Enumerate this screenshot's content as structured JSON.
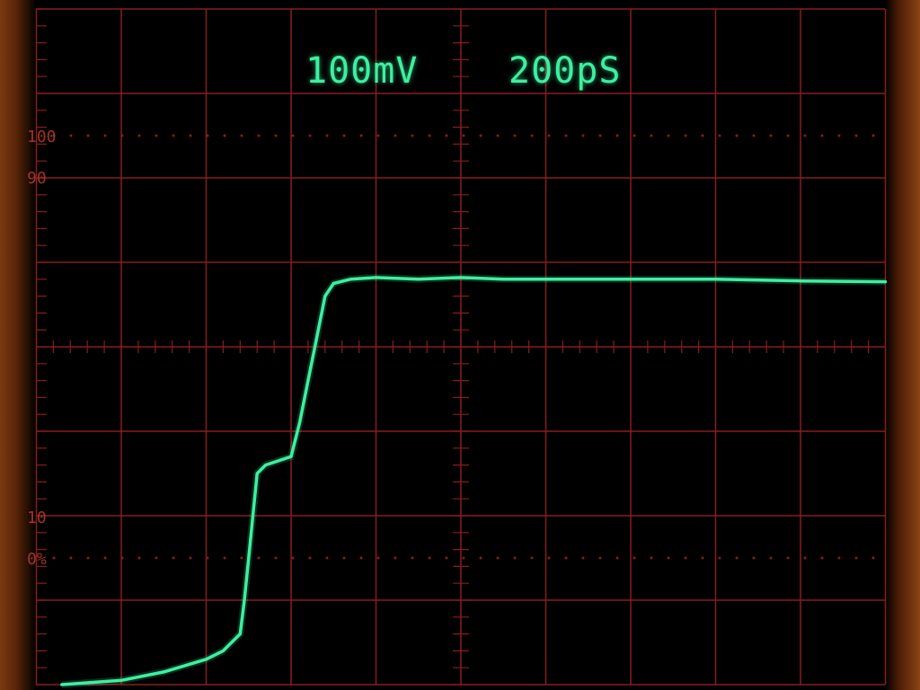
{
  "readout": {
    "volts_per_div": "100mV",
    "time_per_div": "200pS"
  },
  "graticule_markers": {
    "top_100": "100",
    "top_90": "90",
    "bottom_10": "10",
    "bottom_0": "0%"
  },
  "colors": {
    "trace": "#3cf0a0",
    "graticule": "#8a1c1c",
    "screen": "#000000",
    "bezel": "#7a3a12"
  },
  "chart_data": {
    "type": "line",
    "title": "",
    "xlabel": "",
    "ylabel": "",
    "x_div_range": [
      -5,
      5
    ],
    "y_div_range": [
      -4,
      4
    ],
    "grid": true,
    "series": [
      {
        "x": [
          -4.7,
          -4.0,
          -3.5,
          -3.0,
          -2.8,
          -2.6,
          -2.55,
          -2.5,
          -2.45,
          -2.4,
          -2.3,
          -2.0,
          -1.9,
          -1.8,
          -1.7,
          -1.6,
          -1.5,
          -1.3,
          -1.0,
          -0.5,
          0.0,
          0.5,
          1.0,
          2.0,
          3.0,
          4.0,
          5.0
        ],
        "y": [
          -4.0,
          -3.95,
          -3.85,
          -3.7,
          -3.6,
          -3.4,
          -3.0,
          -2.5,
          -2.0,
          -1.5,
          -1.4,
          -1.3,
          -0.9,
          -0.4,
          0.1,
          0.6,
          0.75,
          0.8,
          0.82,
          0.8,
          0.82,
          0.8,
          0.8,
          0.8,
          0.8,
          0.78,
          0.77
        ]
      }
    ]
  }
}
